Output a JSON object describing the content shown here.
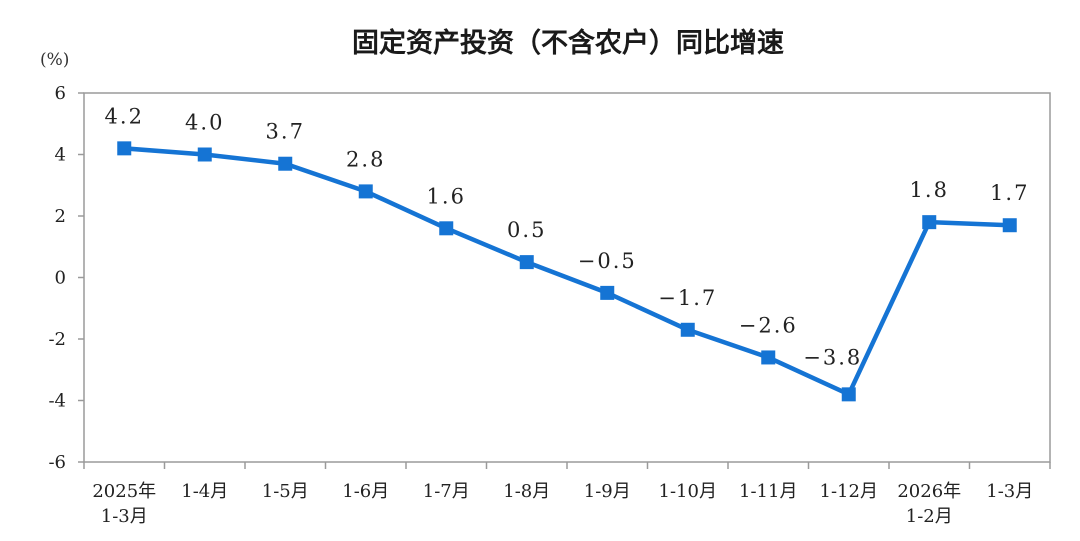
{
  "chart_data": {
    "type": "line",
    "title": "固定资产投资（不含农户）同比增速",
    "ylabel": "(%)",
    "ylim": [
      -6,
      6
    ],
    "yticks": [
      6,
      4,
      2,
      0,
      -2,
      -4,
      -6
    ],
    "categories": [
      [
        "2025年",
        "1-3月"
      ],
      [
        "1-4月"
      ],
      [
        "1-5月"
      ],
      [
        "1-6月"
      ],
      [
        "1-7月"
      ],
      [
        "1-8月"
      ],
      [
        "1-9月"
      ],
      [
        "1-10月"
      ],
      [
        "1-11月"
      ],
      [
        "1-12月"
      ],
      [
        "2026年",
        "1-2月"
      ],
      [
        "1-3月"
      ]
    ],
    "series": [
      {
        "values": [
          4.2,
          4.0,
          3.7,
          2.8,
          1.6,
          0.5,
          -0.5,
          -1.7,
          -2.6,
          -3.8,
          1.8,
          1.7
        ],
        "labels": [
          "4.2",
          "4.0",
          "3.7",
          "2.8",
          "1.6",
          "0.5",
          "−0.5",
          "−1.7",
          "−2.6",
          "−3.8",
          "1.8",
          "1.7"
        ],
        "color": "#1574d4"
      }
    ],
    "grid": false,
    "legend": "none"
  }
}
